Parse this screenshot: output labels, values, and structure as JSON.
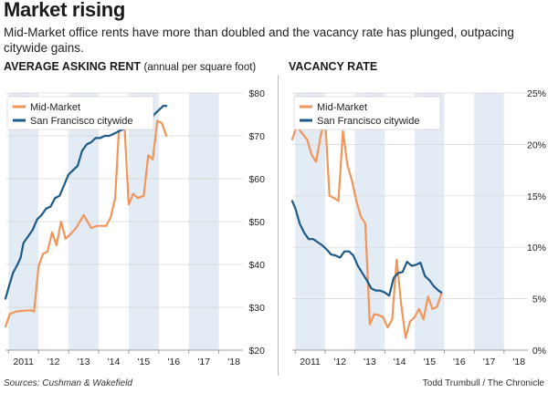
{
  "headline": "Market rising",
  "subhead": "Mid-Market office rents have more than doubled and the vacancy rate has plunged, outpacing citywide gains.",
  "sources": "Sources: Cushman & Wakefield",
  "credit": "Todd Trumbull / The Chronicle",
  "colors": {
    "mid_market": "#f0965b",
    "citywide": "#1d5a87",
    "band": "#e3ebf4",
    "axis": "#888888",
    "text": "#222222"
  },
  "chart_data": [
    {
      "type": "line",
      "title": "AVERAGE ASKING RENT",
      "subtitle": "(annual per square foot)",
      "x_labels": [
        "2011",
        "'12",
        "'13",
        "'14",
        "'15",
        "'16",
        "'17",
        "'18"
      ],
      "x_range": [
        2010.9,
        2018.8
      ],
      "ylim": [
        20,
        80
      ],
      "y_ticks": [
        20,
        30,
        40,
        50,
        60,
        70,
        80
      ],
      "y_tick_labels": [
        "$20",
        "$30",
        "$40",
        "$50",
        "$60",
        "$70",
        "$80"
      ],
      "legend": [
        "Mid-Market",
        "San Francisco citywide"
      ],
      "legend_position": "top-left",
      "series": [
        {
          "name": "Mid-Market",
          "color_key": "mid_market",
          "points": [
            [
              2010.9,
              25.5
            ],
            [
              2011.05,
              28.5
            ],
            [
              2011.25,
              29
            ],
            [
              2011.5,
              29.2
            ],
            [
              2011.75,
              29.3
            ],
            [
              2011.85,
              29
            ],
            [
              2012.0,
              39.5
            ],
            [
              2012.15,
              42.5
            ],
            [
              2012.3,
              43
            ],
            [
              2012.45,
              47.5
            ],
            [
              2012.6,
              44.5
            ],
            [
              2012.75,
              50
            ],
            [
              2012.9,
              46
            ],
            [
              2013.05,
              47
            ],
            [
              2013.25,
              48.5
            ],
            [
              2013.5,
              51.5
            ],
            [
              2013.75,
              48.5
            ],
            [
              2013.95,
              49
            ],
            [
              2014.25,
              49
            ],
            [
              2014.4,
              51
            ],
            [
              2014.55,
              55.5
            ],
            [
              2014.7,
              75
            ],
            [
              2014.85,
              73.5
            ],
            [
              2015.0,
              54
            ],
            [
              2015.15,
              56.5
            ],
            [
              2015.3,
              55.5
            ],
            [
              2015.5,
              56
            ],
            [
              2015.65,
              65.5
            ],
            [
              2015.8,
              64.5
            ],
            [
              2015.95,
              73.5
            ],
            [
              2016.1,
              73
            ],
            [
              2016.25,
              70
            ]
          ]
        },
        {
          "name": "San Francisco citywide",
          "color_key": "citywide",
          "points": [
            [
              2010.9,
              32
            ],
            [
              2011.0,
              34.5
            ],
            [
              2011.15,
              38
            ],
            [
              2011.3,
              40
            ],
            [
              2011.4,
              41.5
            ],
            [
              2011.5,
              45
            ],
            [
              2011.65,
              46.5
            ],
            [
              2011.8,
              48
            ],
            [
              2011.95,
              50.5
            ],
            [
              2012.1,
              51.5
            ],
            [
              2012.25,
              53
            ],
            [
              2012.4,
              53.5
            ],
            [
              2012.55,
              55.5
            ],
            [
              2012.7,
              56
            ],
            [
              2012.85,
              58.5
            ],
            [
              2013.0,
              61
            ],
            [
              2013.15,
              62
            ],
            [
              2013.3,
              63
            ],
            [
              2013.45,
              66.5
            ],
            [
              2013.6,
              68
            ],
            [
              2013.75,
              68.5
            ],
            [
              2013.9,
              69.5
            ],
            [
              2014.05,
              69.5
            ],
            [
              2014.2,
              70
            ],
            [
              2014.35,
              70
            ],
            [
              2014.5,
              70.5
            ],
            [
              2014.65,
              71
            ],
            [
              2014.8,
              71.5
            ],
            [
              2014.95,
              72
            ],
            [
              2015.1,
              72
            ],
            [
              2015.25,
              72.5
            ],
            [
              2015.4,
              72.5
            ],
            [
              2015.55,
              73
            ],
            [
              2015.7,
              73.5
            ],
            [
              2015.85,
              75
            ],
            [
              2016.0,
              76
            ],
            [
              2016.15,
              77
            ],
            [
              2016.25,
              77
            ]
          ]
        }
      ]
    },
    {
      "type": "line",
      "title": "VACANCY RATE",
      "x_labels": [
        "2011",
        "'12",
        "'13",
        "'14",
        "'15",
        "'16",
        "'17",
        "'18"
      ],
      "x_range": [
        2010.9,
        2018.8
      ],
      "ylim": [
        0,
        25
      ],
      "y_ticks": [
        0,
        5,
        10,
        15,
        20,
        25
      ],
      "y_tick_labels": [
        "0%",
        "5%",
        "10%",
        "15%",
        "20%",
        "25%"
      ],
      "legend": [
        "Mid-Market",
        "San Francisco citywide"
      ],
      "legend_position": "top-left",
      "series": [
        {
          "name": "Mid-Market",
          "color_key": "mid_market",
          "points": [
            [
              2010.9,
              20.5
            ],
            [
              2011.05,
              21.8
            ],
            [
              2011.25,
              21
            ],
            [
              2011.4,
              20.5
            ],
            [
              2011.55,
              19
            ],
            [
              2011.7,
              18.3
            ],
            [
              2011.85,
              20.8
            ],
            [
              2012.0,
              22.5
            ],
            [
              2012.15,
              15
            ],
            [
              2012.3,
              14.8
            ],
            [
              2012.45,
              14.5
            ],
            [
              2012.6,
              21.3
            ],
            [
              2012.75,
              18
            ],
            [
              2012.9,
              16.5
            ],
            [
              2013.05,
              14.5
            ],
            [
              2013.2,
              13
            ],
            [
              2013.35,
              12.3
            ],
            [
              2013.5,
              2.5
            ],
            [
              2013.65,
              3.5
            ],
            [
              2013.8,
              3.4
            ],
            [
              2013.95,
              3.2
            ],
            [
              2014.1,
              2.2
            ],
            [
              2014.25,
              3
            ],
            [
              2014.4,
              8.8
            ],
            [
              2014.55,
              4.5
            ],
            [
              2014.7,
              1.2
            ],
            [
              2014.85,
              2.8
            ],
            [
              2015.0,
              3.2
            ],
            [
              2015.15,
              4
            ],
            [
              2015.3,
              3
            ],
            [
              2015.45,
              5.2
            ],
            [
              2015.6,
              4
            ],
            [
              2015.75,
              4.2
            ],
            [
              2015.9,
              5.5
            ]
          ]
        },
        {
          "name": "San Francisco citywide",
          "color_key": "citywide",
          "points": [
            [
              2010.9,
              14.5
            ],
            [
              2011.0,
              13.8
            ],
            [
              2011.15,
              12.3
            ],
            [
              2011.3,
              11.4
            ],
            [
              2011.45,
              10.8
            ],
            [
              2011.6,
              10.8
            ],
            [
              2011.75,
              10.5
            ],
            [
              2011.9,
              10.2
            ],
            [
              2012.05,
              9.8
            ],
            [
              2012.2,
              9.3
            ],
            [
              2012.35,
              9.2
            ],
            [
              2012.5,
              9
            ],
            [
              2012.65,
              9.6
            ],
            [
              2012.8,
              9.6
            ],
            [
              2012.95,
              9.2
            ],
            [
              2013.1,
              8.2
            ],
            [
              2013.25,
              7.5
            ],
            [
              2013.4,
              6.8
            ],
            [
              2013.55,
              6
            ],
            [
              2013.7,
              5.8
            ],
            [
              2013.85,
              5.8
            ],
            [
              2014.0,
              5.6
            ],
            [
              2014.15,
              5.3
            ],
            [
              2014.3,
              7
            ],
            [
              2014.45,
              7.5
            ],
            [
              2014.6,
              7.6
            ],
            [
              2014.75,
              8.6
            ],
            [
              2014.9,
              8.2
            ],
            [
              2015.05,
              8.3
            ],
            [
              2015.2,
              8.5
            ],
            [
              2015.35,
              7.2
            ],
            [
              2015.5,
              6.8
            ],
            [
              2015.65,
              6.2
            ],
            [
              2015.8,
              5.8
            ],
            [
              2015.9,
              5.6
            ]
          ]
        }
      ]
    }
  ]
}
